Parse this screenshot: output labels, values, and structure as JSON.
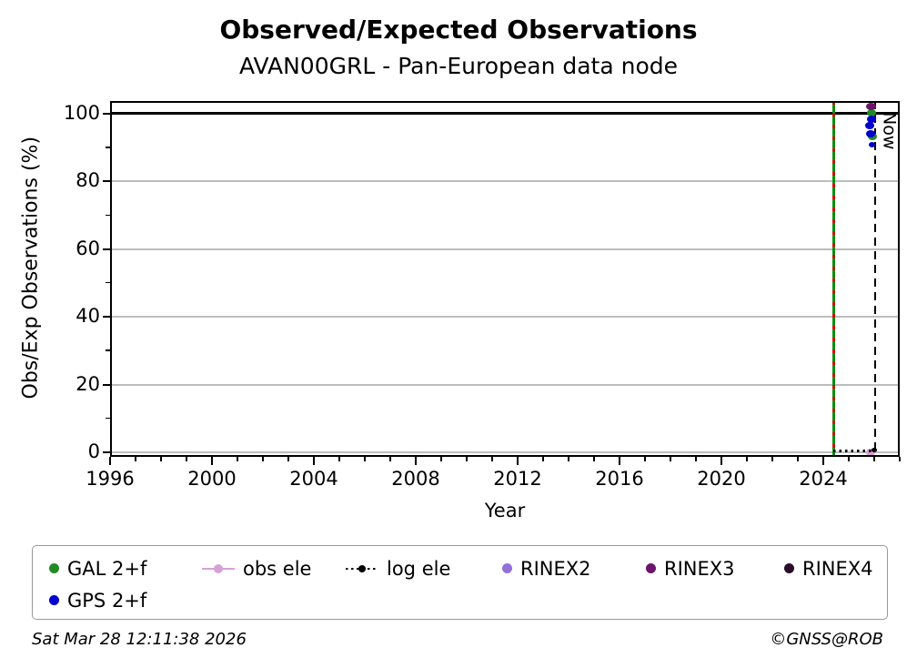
{
  "chart_data": {
    "type": "scatter",
    "title": "Observed/Expected Observations",
    "subtitle": "AVAN00GRL - Pan-European data node",
    "xlabel": "Year",
    "ylabel": "Obs/Exp Observations (%)",
    "xlim": [
      1996,
      2027.0
    ],
    "ylim": [
      -1.35,
      103.75
    ],
    "xticks": [
      1996,
      2000,
      2004,
      2008,
      2012,
      2016,
      2020,
      2024
    ],
    "x_minor_step": 1,
    "yticks": [
      0,
      20,
      40,
      60,
      80,
      100
    ],
    "y_minor_ticks": [
      10,
      30,
      50,
      70,
      90
    ],
    "grid": "horizontal",
    "grid_color": "#bdbdbd",
    "ref_lines": [
      {
        "name": "hundred-percent-line",
        "axis": "y",
        "value": 100,
        "color": "#000000",
        "style": "solid",
        "width": 3
      },
      {
        "name": "event-line",
        "axis": "x",
        "value": 2024.41,
        "color": "#0b8f0b",
        "style": "green-red-dashed",
        "overlay_color": "#cc1111",
        "width": 3
      },
      {
        "name": "now-line",
        "axis": "x",
        "value": 2026.02,
        "color": "#000000",
        "style": "dashed",
        "width": 2,
        "label": "Now"
      }
    ],
    "series": [
      {
        "name": "obs ele",
        "color": "#D8A0D8",
        "marker": "dot",
        "marker_size": [
          10,
          8
        ],
        "points": [
          [
            2025.87,
            0.0
          ]
        ]
      },
      {
        "name": "log ele",
        "color": "#000000",
        "marker": "dotted-line",
        "line": {
          "x": [
            2024.41,
            2026.02
          ],
          "y": [
            0.35,
            0.35
          ]
        },
        "marker_size": [
          6,
          5
        ],
        "points": [
          [
            2026.0,
            0.8
          ]
        ]
      },
      {
        "name": "GAL 2+f",
        "color": "#228B22",
        "marker": "dot",
        "marker_size": [
          10,
          8
        ],
        "points": [
          [
            2025.9,
            100.3
          ],
          [
            2025.94,
            93.2
          ]
        ]
      },
      {
        "name": "GPS 2+f",
        "color": "#0000CD",
        "marker": "dot",
        "marker_size": [
          10,
          8
        ],
        "points": [
          [
            2025.9,
            98.5
          ],
          [
            2025.82,
            96.4
          ],
          [
            2025.87,
            94.2
          ],
          [
            2025.92,
            90.9,
            7,
            6
          ]
        ]
      },
      {
        "name": "RINEX2",
        "color": "#9370DB",
        "marker": "dot",
        "marker_size": [
          10,
          8
        ],
        "points": []
      },
      {
        "name": "RINEX3",
        "color": "#6B156B",
        "marker": "dot",
        "marker_size": [
          11,
          8
        ],
        "points": [
          [
            2025.87,
            102.2
          ]
        ]
      },
      {
        "name": "RINEX4",
        "color": "#2A0D2A",
        "marker": "dot",
        "marker_size": [
          10,
          8
        ],
        "points": []
      }
    ],
    "legend": {
      "position": "bottom",
      "entries": [
        {
          "label": "GAL 2+f",
          "color": "#228B22",
          "marker": "dot"
        },
        {
          "label": "obs ele",
          "color": "#D8A0D8",
          "marker": "line-dot"
        },
        {
          "label": "log ele",
          "color": "#000000",
          "marker": "dotted-line-dot"
        },
        {
          "label": "RINEX2",
          "color": "#9370DB",
          "marker": "dot"
        },
        {
          "label": "RINEX3",
          "color": "#6B156B",
          "marker": "dot"
        },
        {
          "label": "RINEX4",
          "color": "#2A0D2A",
          "marker": "dot"
        },
        {
          "label": "GPS 2+f",
          "color": "#0000CD",
          "marker": "dot"
        }
      ]
    },
    "now_label": "Now"
  },
  "footer": {
    "left": "Sat Mar 28 12:11:38 2026",
    "right": "©GNSS@ROB"
  }
}
